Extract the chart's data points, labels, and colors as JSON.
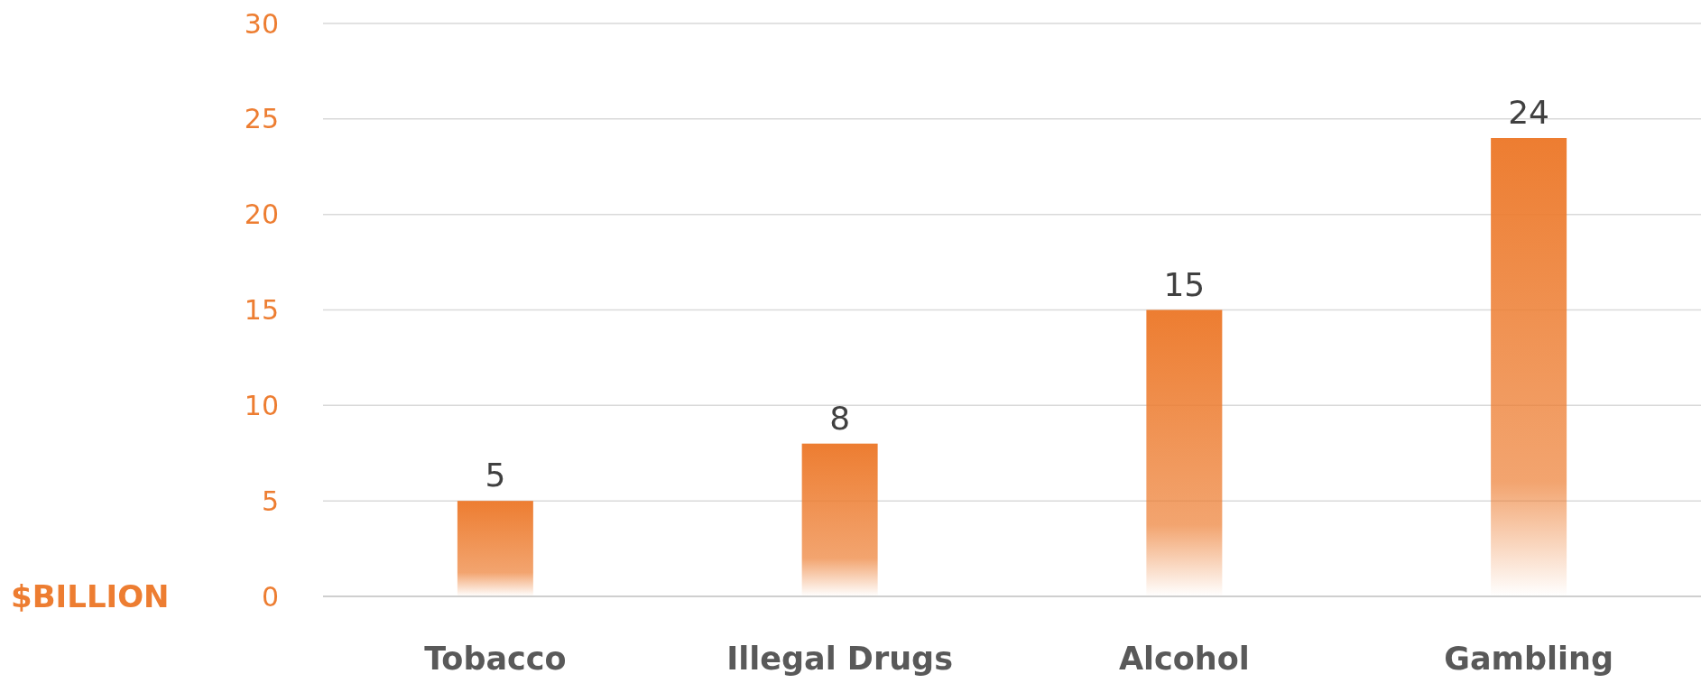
{
  "chart_data": {
    "type": "bar",
    "ylabel": "$BILLION",
    "categories": [
      "Tobacco",
      "Illegal Drugs",
      "Alcohol",
      "Gambling"
    ],
    "values": [
      5,
      8,
      15,
      24
    ],
    "color": "#ed7d31",
    "ylim": [
      0,
      30
    ],
    "yticks": [
      0,
      5,
      10,
      15,
      20,
      25,
      30
    ],
    "grid": "y",
    "data_labels": true
  }
}
